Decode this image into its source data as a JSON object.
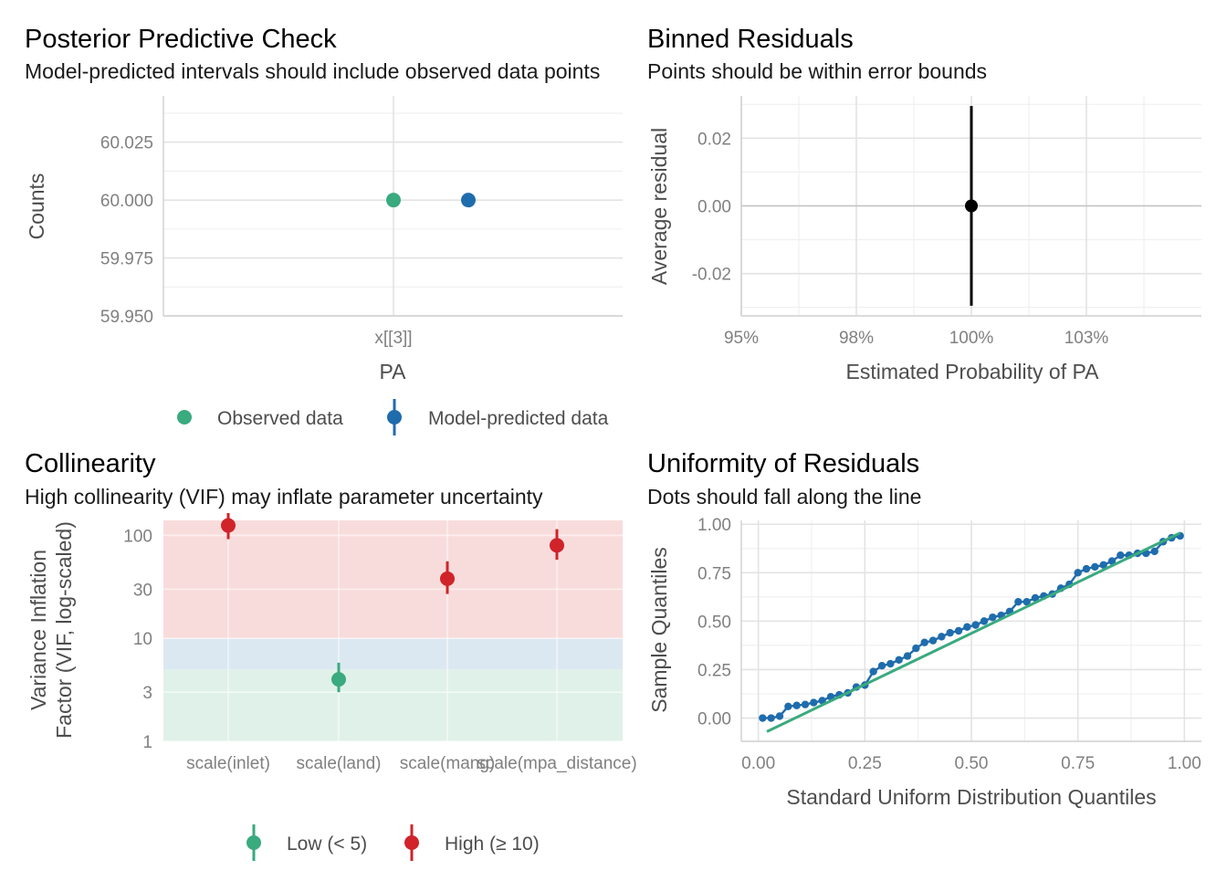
{
  "colors": {
    "observed": "#3aaa7f",
    "predicted": "#1f6cad",
    "low": "#3aaa7f",
    "high": "#d0232a",
    "zone_high": "#f8dcdc",
    "zone_moderate": "#dce8f1",
    "zone_low": "#e0f1ea",
    "black": "#000000"
  },
  "chart_data": [
    {
      "type": "scatter",
      "panel": "posterior-predictive-check",
      "title": "Posterior Predictive Check",
      "subtitle": "Model-predicted intervals should include observed data points",
      "xlabel": "PA",
      "ylabel": "Counts",
      "categories": [
        "x[[3]]"
      ],
      "ylim": [
        59.95,
        60.045
      ],
      "yticks": [
        59.95,
        59.975,
        60.0,
        60.025
      ],
      "ytick_labels": [
        "59.950",
        "59.975",
        "60.000",
        "60.025"
      ],
      "series": [
        {
          "name": "Observed data",
          "category": "x[[3]]",
          "value": 60.0
        },
        {
          "name": "Model-predicted data",
          "category": "x[[3]]",
          "value": 60.0
        }
      ],
      "legend": [
        "Observed data",
        "Model-predicted data"
      ],
      "legend_position": "bottom",
      "grid": true
    },
    {
      "type": "scatter",
      "panel": "binned-residuals",
      "title": "Binned Residuals",
      "subtitle": "Points should be within error bounds",
      "xlabel": "Estimated Probability of PA",
      "ylabel": "Average residual",
      "xlim": [
        0.95,
        1.05
      ],
      "xticks": [
        0.95,
        0.975,
        1.0,
        1.025
      ],
      "xtick_labels": [
        "95%",
        "98%",
        "100%",
        "103%"
      ],
      "ylim": [
        -0.0325,
        0.0325
      ],
      "yticks": [
        -0.02,
        0.0,
        0.02
      ],
      "ytick_labels": [
        "-0.02",
        "0.00",
        "0.02"
      ],
      "points": [
        {
          "x": 1.0,
          "y": 0.0,
          "ymin": -0.0295,
          "ymax": 0.0295
        }
      ],
      "grid": true
    },
    {
      "type": "scatter",
      "panel": "collinearity",
      "title": "Collinearity",
      "subtitle": "High collinearity (VIF) may inflate parameter uncertainty",
      "xlabel": "",
      "ylabel": [
        "Variance Inflation",
        "Factor (VIF, log-scaled)"
      ],
      "scale": "log",
      "ylim": [
        1,
        140
      ],
      "yticks": [
        1,
        3,
        10,
        30,
        100
      ],
      "ytick_labels": [
        "1",
        "3",
        "10",
        "30",
        "100"
      ],
      "categories": [
        "scale(inlet)",
        "scale(land)",
        "scale(mang)",
        "scale(mpa_distance)"
      ],
      "points": [
        {
          "category": "scale(inlet)",
          "vif": 125,
          "low": 92,
          "high": 165,
          "group": "High (≥ 10)"
        },
        {
          "category": "scale(land)",
          "vif": 4,
          "low": 3,
          "high": 5.8,
          "group": "Low (< 5)"
        },
        {
          "category": "scale(mang)",
          "vif": 38,
          "low": 27,
          "high": 56,
          "group": "High (≥ 10)"
        },
        {
          "category": "scale(mpa_distance)",
          "vif": 80,
          "low": 58,
          "high": 115,
          "group": "High (≥ 10)"
        }
      ],
      "zones": [
        {
          "from": 1,
          "to": 5,
          "color": "#e0f1ea"
        },
        {
          "from": 5,
          "to": 10,
          "color": "#dce8f1"
        },
        {
          "from": 10,
          "to": 140,
          "color": "#f8dcdc"
        }
      ],
      "legend": [
        "Low (< 5)",
        "High (≥ 10)"
      ],
      "legend_position": "bottom",
      "grid": true
    },
    {
      "type": "scatter",
      "panel": "uniformity-of-residuals",
      "title": "Uniformity of Residuals",
      "subtitle": "Dots should fall along the line",
      "xlabel": "Standard Uniform Distribution Quantiles",
      "ylabel": "Sample Quantiles",
      "xlim": [
        -0.04,
        1.04
      ],
      "ylim": [
        -0.12,
        1.02
      ],
      "xticks": [
        0,
        0.25,
        0.5,
        0.75,
        1.0
      ],
      "xtick_labels": [
        "0.00",
        "0.25",
        "0.50",
        "0.75",
        "1.00"
      ],
      "yticks": [
        0,
        0.25,
        0.5,
        0.75,
        1.0
      ],
      "ytick_labels": [
        "0.00",
        "0.25",
        "0.50",
        "0.75",
        "1.00"
      ],
      "reference_line": {
        "x": [
          0.02,
          0.99
        ],
        "y": [
          -0.07,
          0.955
        ]
      },
      "x": [
        0.01,
        0.03,
        0.05,
        0.07,
        0.09,
        0.11,
        0.13,
        0.15,
        0.17,
        0.19,
        0.21,
        0.23,
        0.25,
        0.27,
        0.29,
        0.31,
        0.33,
        0.35,
        0.37,
        0.39,
        0.41,
        0.43,
        0.45,
        0.47,
        0.49,
        0.51,
        0.53,
        0.55,
        0.57,
        0.59,
        0.61,
        0.63,
        0.65,
        0.67,
        0.69,
        0.71,
        0.73,
        0.75,
        0.77,
        0.79,
        0.81,
        0.83,
        0.85,
        0.87,
        0.89,
        0.91,
        0.93,
        0.95,
        0.97,
        0.99
      ],
      "y": [
        0.0,
        0.0,
        0.01,
        0.06,
        0.065,
        0.07,
        0.08,
        0.09,
        0.11,
        0.12,
        0.13,
        0.16,
        0.17,
        0.24,
        0.27,
        0.28,
        0.3,
        0.32,
        0.36,
        0.39,
        0.4,
        0.42,
        0.44,
        0.45,
        0.47,
        0.48,
        0.5,
        0.52,
        0.53,
        0.55,
        0.6,
        0.6,
        0.62,
        0.63,
        0.64,
        0.67,
        0.69,
        0.75,
        0.77,
        0.78,
        0.79,
        0.81,
        0.84,
        0.84,
        0.85,
        0.85,
        0.86,
        0.91,
        0.93,
        0.94
      ],
      "grid": true
    }
  ]
}
